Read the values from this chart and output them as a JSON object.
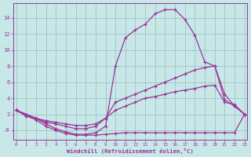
{
  "xlabel": "Windchill (Refroidissement éolien,°C)",
  "bg_color": "#c8e8e8",
  "line_color": "#993399",
  "grid_color": "#99bbbb",
  "x_values": [
    0,
    1,
    2,
    3,
    4,
    5,
    6,
    7,
    8,
    9,
    10,
    11,
    12,
    13,
    14,
    15,
    16,
    17,
    18,
    19,
    20,
    21,
    22,
    23
  ],
  "line1": [
    2.5,
    2.0,
    1.5,
    0.8,
    0.2,
    -0.2,
    -0.5,
    -0.5,
    -0.3,
    0.5,
    8.0,
    11.5,
    12.5,
    13.2,
    14.5,
    15.0,
    15.0,
    13.8,
    11.8,
    8.5,
    8.0,
    4.5,
    3.0,
    2.0
  ],
  "line2": [
    2.5,
    2.0,
    1.5,
    1.0,
    0.8,
    0.5,
    0.2,
    0.2,
    0.5,
    1.5,
    3.5,
    4.0,
    4.5,
    5.0,
    5.5,
    6.0,
    6.5,
    7.0,
    7.5,
    7.8,
    8.0,
    3.8,
    3.0,
    2.0
  ],
  "line3": [
    2.5,
    1.8,
    1.5,
    1.2,
    1.0,
    0.8,
    0.6,
    0.6,
    0.8,
    1.5,
    2.5,
    3.0,
    3.5,
    4.0,
    4.2,
    4.5,
    4.8,
    5.0,
    5.2,
    5.5,
    5.6,
    3.5,
    3.2,
    2.0
  ],
  "line4": [
    2.5,
    1.8,
    1.3,
    0.5,
    0.0,
    -0.4,
    -0.6,
    -0.6,
    -0.6,
    -0.5,
    -0.4,
    -0.3,
    -0.3,
    -0.3,
    -0.3,
    -0.3,
    -0.3,
    -0.3,
    -0.3,
    -0.3,
    -0.3,
    -0.3,
    -0.3,
    2.0
  ],
  "ylim": [
    -1.2,
    15.8
  ],
  "xlim": [
    -0.3,
    23.3
  ],
  "yticks": [
    0,
    2,
    4,
    6,
    8,
    10,
    12,
    14
  ],
  "ytick_labels": [
    "-0",
    "2",
    "4",
    "6",
    "8",
    "10",
    "12",
    "14"
  ],
  "xticks": [
    0,
    1,
    2,
    3,
    4,
    5,
    6,
    7,
    8,
    9,
    10,
    11,
    12,
    13,
    14,
    15,
    16,
    17,
    18,
    19,
    20,
    21,
    22,
    23
  ]
}
